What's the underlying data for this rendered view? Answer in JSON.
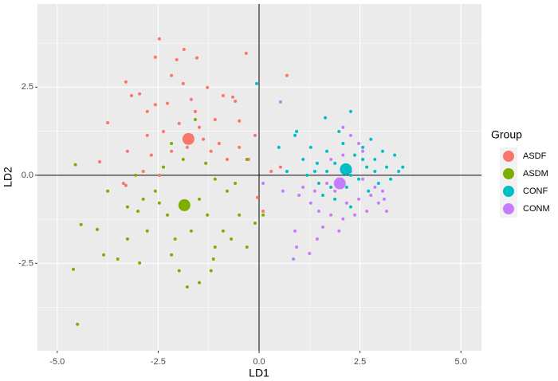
{
  "chart_data": {
    "type": "scatter",
    "x_label": "LD1",
    "y_label": "LD2",
    "legend_title": "Group",
    "legend_position": "right",
    "grid": true,
    "xlim": [
      -5.49,
      5.51
    ],
    "ylim": [
      -4.98,
      4.86
    ],
    "xticks": [
      {
        "value": -5,
        "label": "-5.0"
      },
      -2.5,
      {
        "value": 0,
        "label": "0.0"
      },
      2.5,
      {
        "value": 5,
        "label": "5.0"
      }
    ],
    "yticks": [
      -2.5,
      {
        "value": 0,
        "label": "0.0"
      },
      2.5
    ],
    "xminor": [
      -3.75,
      -1.25,
      1.25,
      3.75
    ],
    "yminor": [
      -3.75,
      -1.25,
      1.25,
      3.75
    ],
    "reference_lines": {
      "x": 0,
      "y": 0
    },
    "series": [
      {
        "name": "ASDF",
        "color": "#F8766D",
        "centroid": [
          -1.75,
          1.03
        ],
        "x": [
          -2.47,
          -1.86,
          -3.3,
          -2.57,
          -2.04,
          -1.54,
          -0.32,
          0.69,
          -3.75,
          -3.95,
          -3.16,
          -2.96,
          -2.77,
          -2.27,
          -1.68,
          -1.28,
          -0.89,
          -0.65,
          -0.49,
          -1.09,
          -1.48,
          -1.98,
          -2.37,
          -2.77,
          -3.26,
          -3.36,
          -3.3,
          -2.67,
          -2.17,
          -1.78,
          -1.38,
          -0.99,
          -0.79,
          -0.49,
          -0.1,
          -0.26,
          -1.88,
          -2.17,
          -2.57,
          -1.58,
          -1.19,
          -2.87,
          -2.47,
          -0.04,
          0.1,
          0.3,
          0.53,
          -0.59
        ],
        "y": [
          3.87,
          3.57,
          2.65,
          3.35,
          3.28,
          3.33,
          3.46,
          2.83,
          1.49,
          0.38,
          2.26,
          2.31,
          1.81,
          2.04,
          2.15,
          2.49,
          2.26,
          2.22,
          1.54,
          1.58,
          1.36,
          1.47,
          1.24,
          1.13,
          0.68,
          -0.23,
          -0.29,
          0.57,
          0.68,
          0.79,
          1.02,
          0.9,
          0.45,
          0.79,
          1.13,
          0.45,
          2.6,
          2.83,
          2.0,
          1.81,
          0.68,
          0.11,
          0,
          -0.63,
          -1.02,
          0.11,
          0.23,
          2.1
        ]
      },
      {
        "name": "ASDM",
        "color": "#7CAE00",
        "centroid": [
          -1.85,
          -0.85
        ],
        "x": [
          -4.55,
          -4.6,
          -4.5,
          -4.41,
          -4.01,
          -3.85,
          -3.5,
          -3.26,
          -2.96,
          -3.0,
          -2.77,
          -2.47,
          -2.57,
          -2.27,
          -2.08,
          -1.98,
          -1.78,
          -1.48,
          -1.19,
          -1.09,
          -0.89,
          -0.69,
          -0.49,
          -0.3,
          -0.1,
          -2.37,
          -2.17,
          -1.88,
          -1.68,
          -1.58,
          -1.32,
          -1.09,
          -0.79,
          -0.59,
          -1.48,
          -1.28,
          -1.68,
          -2.87,
          -3.26,
          -3.75,
          -3.06,
          -2.17,
          -1.13,
          -0.3,
          0.1
        ],
        "y": [
          0.3,
          -2.67,
          -4.23,
          -1.4,
          -1.54,
          -2.26,
          -2.38,
          -1.81,
          -2.49,
          -1.02,
          -1.58,
          -0.79,
          -0.45,
          -1.13,
          -1.81,
          -2.71,
          -3.17,
          -3.05,
          -2.71,
          -2.04,
          -1.58,
          -1.81,
          -1.13,
          -2.04,
          -1.36,
          0.23,
          0.9,
          0.45,
          1.13,
          1.58,
          0.34,
          -0.11,
          -0.45,
          -0.23,
          -0.68,
          -1.13,
          -1.58,
          -0.68,
          -0.9,
          -0.45,
          0,
          -2.26,
          -2.38,
          0.45,
          -1.13
        ]
      },
      {
        "name": "CONF",
        "color": "#00BFC4",
        "centroid": [
          2.15,
          0.17
        ],
        "x": [
          -0.06,
          1.64,
          0.89,
          0.93,
          1.09,
          1.28,
          1.38,
          1.48,
          1.68,
          1.88,
          2.08,
          2.27,
          2.37,
          2.57,
          2.67,
          2.87,
          3.06,
          3.16,
          3.26,
          3.46,
          3.56,
          2.96,
          2.71,
          2.47,
          2.17,
          1.78,
          1.58,
          1.19,
          0.69,
          0.49,
          1.98,
          2.27,
          2.77,
          3.36,
          2.27,
          1.88,
          2.57,
          2.87,
          1.44,
          1.68
        ],
        "y": [
          2.6,
          1.63,
          1.13,
          1.24,
          0.45,
          0.79,
          0.11,
          -0.23,
          0.68,
          0.34,
          0.9,
          0,
          0.57,
          0.79,
          0.23,
          0.45,
          0.68,
          0.23,
          -0.11,
          0.11,
          0.23,
          -0.23,
          -0.45,
          -0.11,
          -0.34,
          -0.34,
          -0.57,
          0,
          0.11,
          0.79,
          1.24,
          1.81,
          1.02,
          0.57,
          -0.9,
          -0.68,
          0.45,
          0.11,
          0.34,
          0.11
        ]
      },
      {
        "name": "CONM",
        "color": "#C77CFF",
        "centroid": [
          2.0,
          -0.23
        ],
        "x": [
          0.53,
          0.93,
          0.85,
          1.25,
          0.1,
          0.59,
          0.99,
          1.28,
          1.48,
          1.78,
          2.08,
          2.37,
          2.67,
          2.96,
          3.16,
          3.06,
          2.77,
          2.47,
          2.17,
          1.88,
          1.68,
          1.98,
          2.27,
          2.57,
          2.87,
          2.08,
          2.27,
          2.47,
          2.57,
          2.08,
          1.78,
          1.38,
          1.09,
          1.58,
          1.98,
          1.44,
          0.89,
          3.1
        ],
        "y": [
          2.08,
          -2.04,
          -2.38,
          -2.22,
          -0.23,
          -0.45,
          -0.57,
          -0.79,
          -1.02,
          -1.13,
          -1.24,
          -1.13,
          -1.02,
          -0.79,
          -1.02,
          -0.45,
          -0.57,
          -0.68,
          -0.79,
          -0.45,
          -0.23,
          -0.11,
          0.11,
          -0.11,
          -0.34,
          1.36,
          1.13,
          0.9,
          0.68,
          0.57,
          0.45,
          -0.45,
          -0.34,
          -1.47,
          -1.58,
          -1.81,
          -1.58,
          -0.68
        ]
      }
    ]
  }
}
